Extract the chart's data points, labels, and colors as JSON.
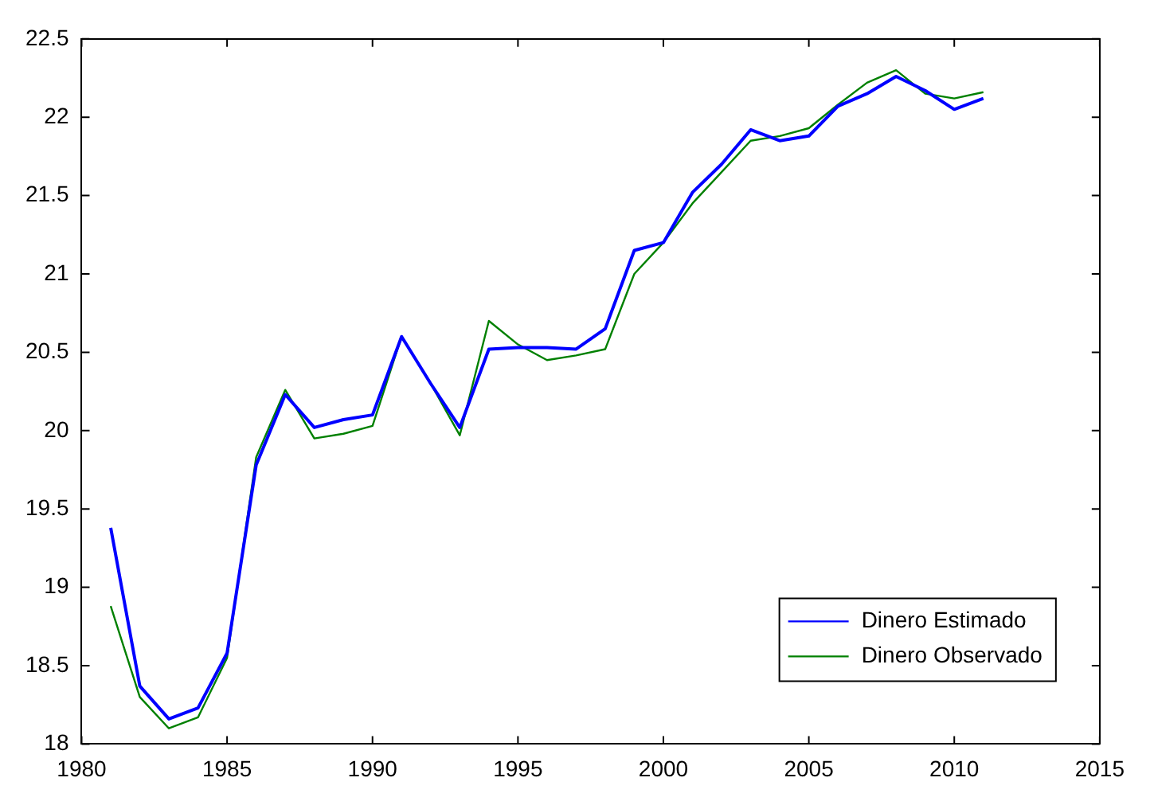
{
  "chart_data": {
    "type": "line",
    "x": [
      1981,
      1982,
      1983,
      1984,
      1985,
      1986,
      1987,
      1988,
      1989,
      1990,
      1991,
      1992,
      1993,
      1994,
      1995,
      1996,
      1997,
      1998,
      1999,
      2000,
      2001,
      2002,
      2003,
      2004,
      2005,
      2006,
      2007,
      2008,
      2009,
      2010,
      2011
    ],
    "series": [
      {
        "name": "Dinero Estimado",
        "color": "#0000ff",
        "values": [
          19.38,
          18.37,
          18.16,
          18.23,
          18.58,
          19.78,
          20.23,
          20.02,
          20.07,
          20.1,
          20.6,
          20.3,
          20.02,
          20.52,
          20.53,
          20.53,
          20.52,
          20.65,
          21.15,
          21.2,
          21.52,
          21.7,
          21.92,
          21.85,
          21.88,
          22.07,
          22.15,
          22.26,
          22.17,
          22.05,
          22.12
        ]
      },
      {
        "name": "Dinero Observado",
        "color": "#008000",
        "values": [
          18.88,
          18.3,
          18.1,
          18.17,
          18.55,
          19.83,
          20.26,
          19.95,
          19.98,
          20.03,
          20.6,
          20.3,
          19.97,
          20.7,
          20.55,
          20.45,
          20.48,
          20.52,
          21.0,
          21.2,
          21.45,
          21.65,
          21.85,
          21.88,
          21.93,
          22.08,
          22.22,
          22.3,
          22.15,
          22.12,
          22.16
        ]
      }
    ],
    "xlim": [
      1980,
      2015
    ],
    "xticks": [
      1980,
      1985,
      1990,
      1995,
      2000,
      2005,
      2010,
      2015
    ],
    "ylim": [
      18,
      22.5
    ],
    "yticks": [
      18,
      18.5,
      19,
      19.5,
      20,
      20.5,
      21,
      21.5,
      22,
      22.5
    ],
    "legend": "bottom right"
  }
}
